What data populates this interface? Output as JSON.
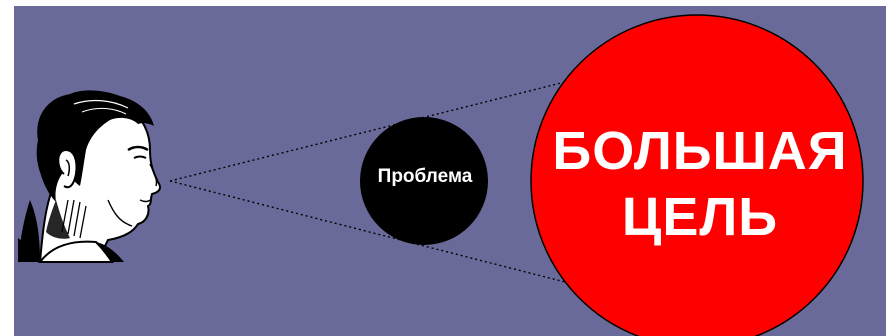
{
  "scene": {
    "background_color": "#6a6a9a",
    "frame_color": "#ffffff",
    "problem": {
      "label": "Проблема",
      "color": "#000000",
      "text_color": "#ffffff"
    },
    "goal": {
      "line1": "БОЛЬШАЯ",
      "line2": "ЦЕЛЬ",
      "color": "#ff0000",
      "text_color": "#ffffff"
    },
    "viewer": {
      "icon": "person-head-profile-icon"
    },
    "sight_lines": {
      "style": "dotted",
      "color": "#000000"
    }
  }
}
